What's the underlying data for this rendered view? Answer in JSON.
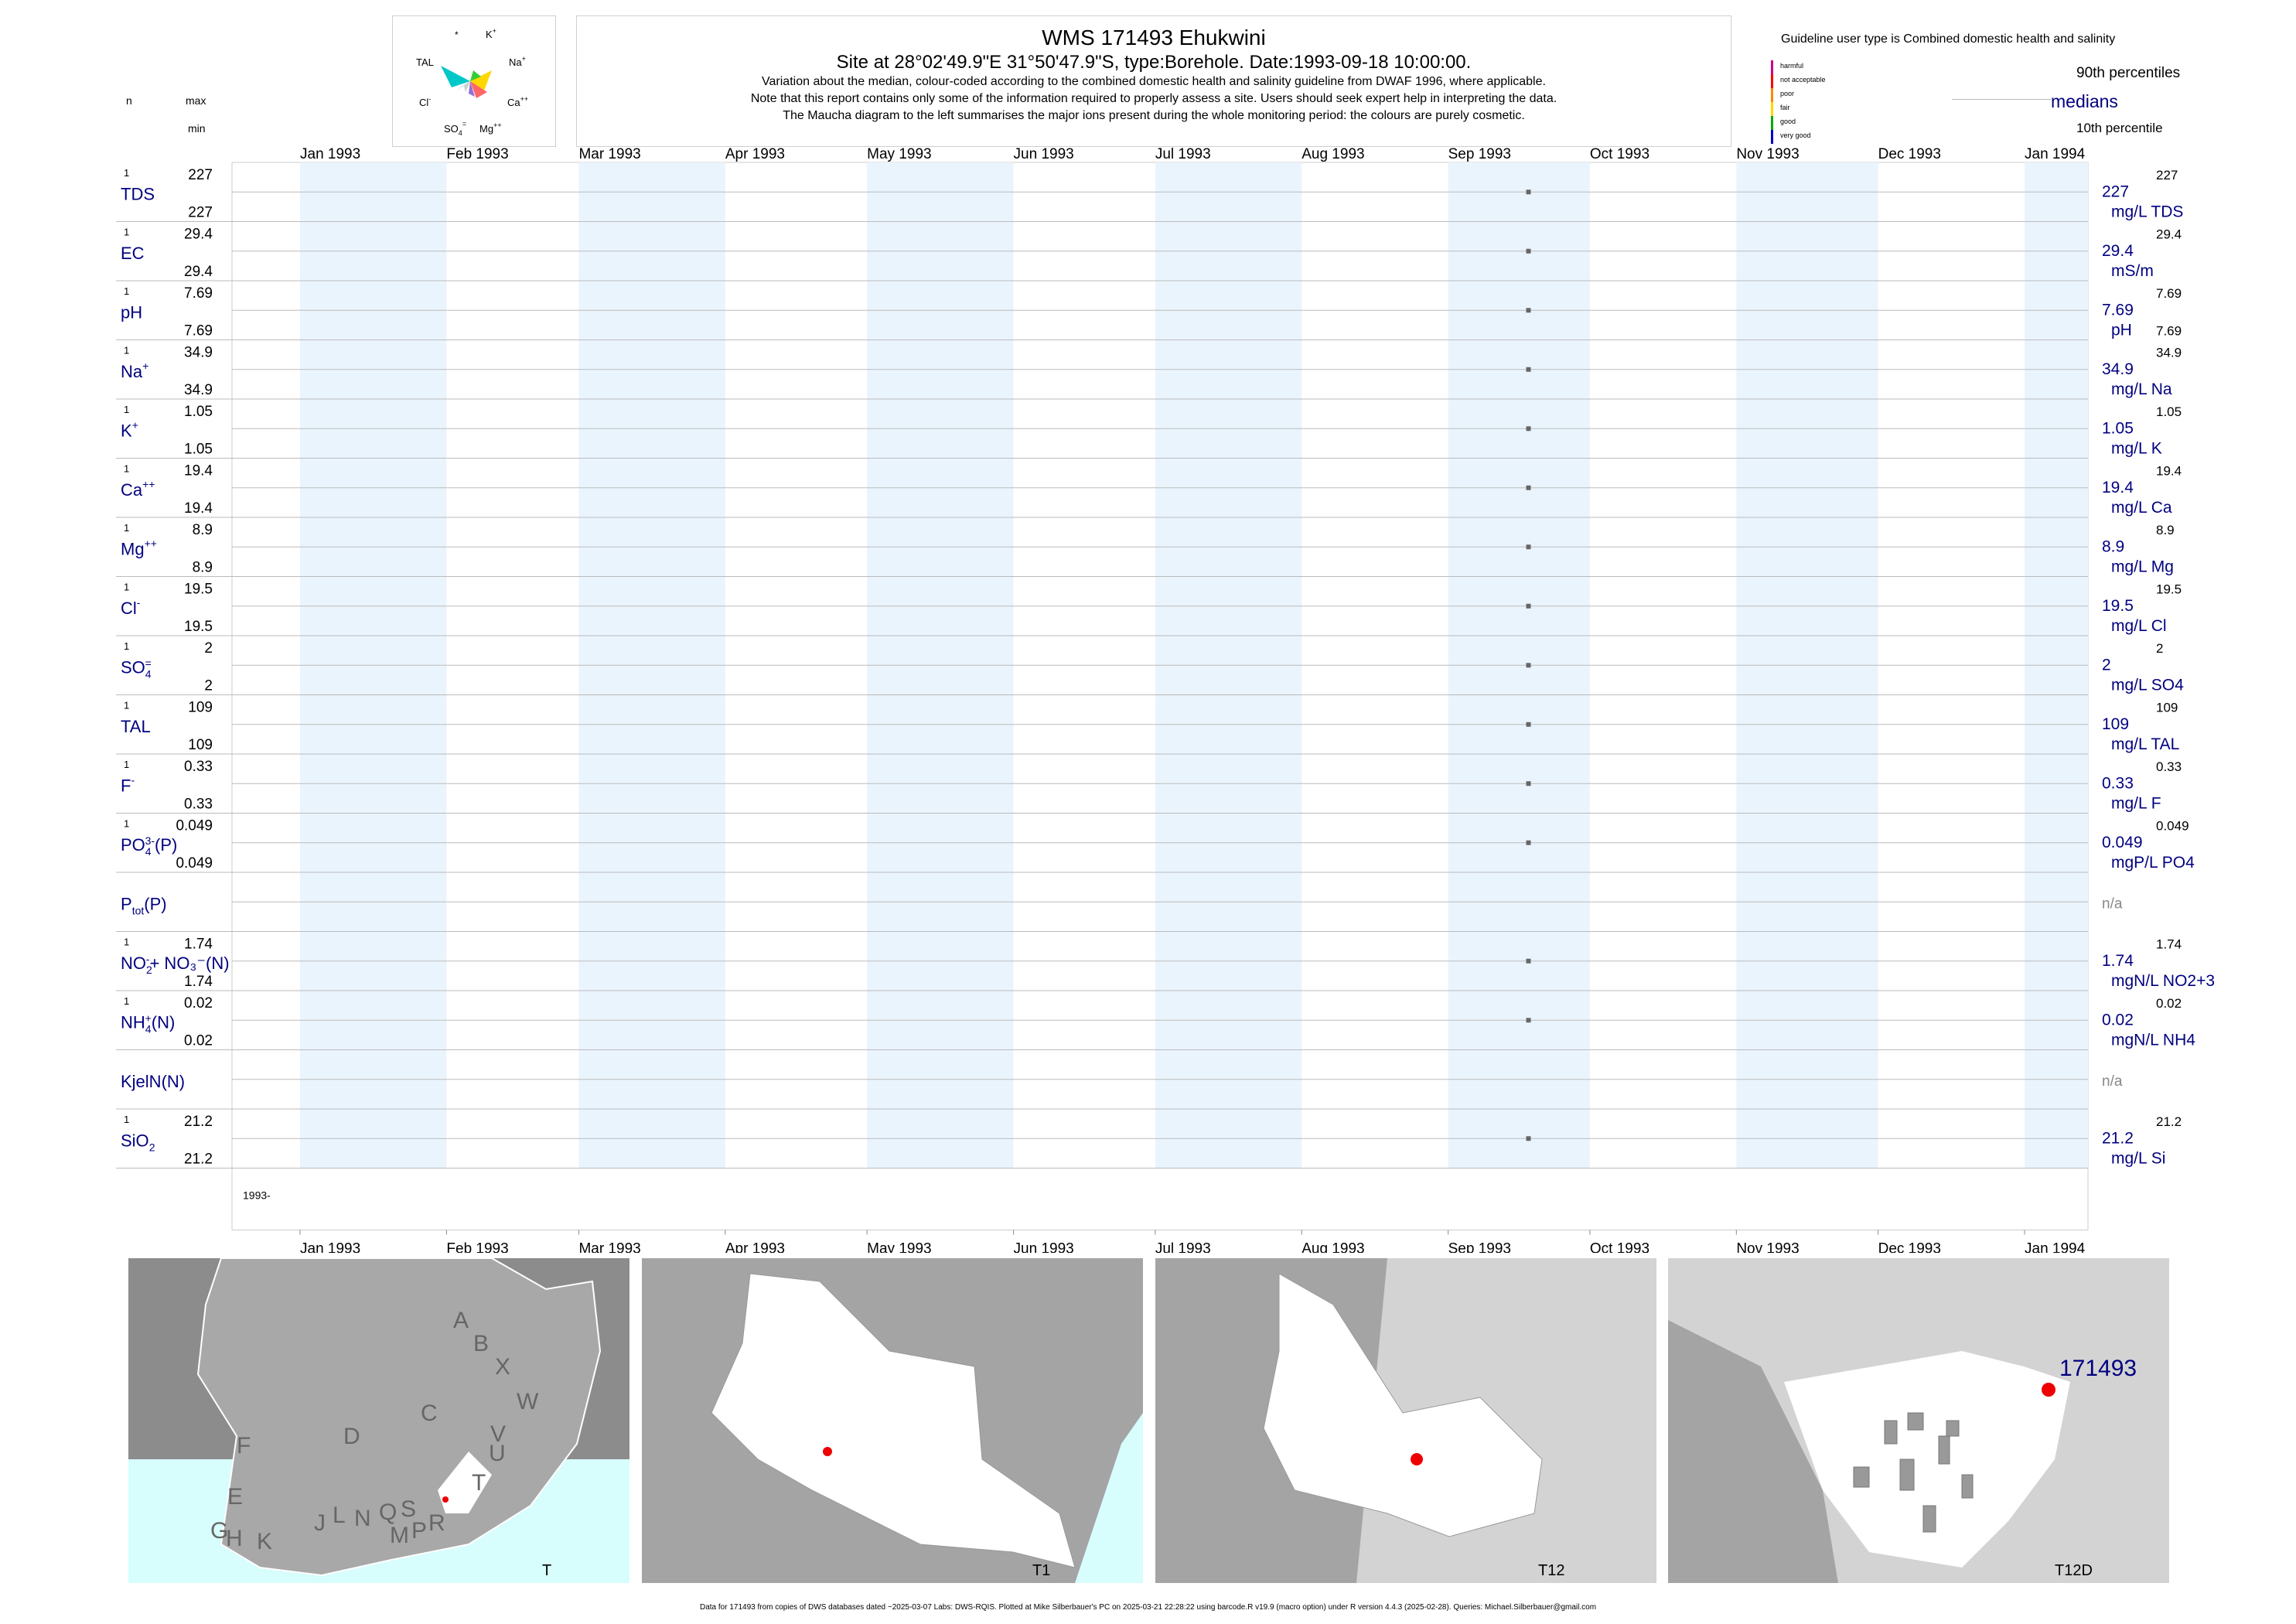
{
  "header": {
    "title": "WMS 171493  Ehukwini",
    "site_line": "Site at 28°02'49.9\"E 31°50'47.9\"S, type:Borehole. Date:1993-09-18 10:00:00.",
    "note1": "Variation about the median,  colour-coded according to the combined domestic health and salinity guideline from DWAF 1996, where applicable.",
    "note2": "Note that this report contains only some of the information required to properly assess a site. Users should seek expert help in interpreting the data.",
    "note3": "The Maucha diagram to the left summarises the major ions present during the whole monitoring period: the colours are purely cosmetic."
  },
  "left_header": {
    "n": "n",
    "max": "max",
    "min": "min"
  },
  "maucha": {
    "labels": {
      "star": "*",
      "k": "K",
      "na": "Na",
      "ca": "Ca",
      "mg": "Mg",
      "so4": "SO",
      "cl": "Cl",
      "tal": "TAL"
    },
    "colors": [
      "#00c8c8",
      "#ffd700",
      "#33cc33",
      "#ff6666",
      "#9370db",
      "#ffff66",
      "#66ccff",
      "#cccccc"
    ]
  },
  "guideline": {
    "title": "Guideline user type is Combined domestic health and salinity",
    "levels": [
      {
        "label": "harmful",
        "color": "#cc0088"
      },
      {
        "label": "not acceptable",
        "color": "#ff0000"
      },
      {
        "label": "poor",
        "color": "#ff8800"
      },
      {
        "label": "fair",
        "color": "#ffd700"
      },
      {
        "label": "good",
        "color": "#00aa00"
      },
      {
        "label": "very good",
        "color": "#0000cc"
      }
    ],
    "p90": "90th percentiles",
    "medians": "medians",
    "p10": "10th percentile"
  },
  "chart_data": {
    "type": "scatter",
    "x_ticks": [
      "Jan 1993",
      "Feb 1993",
      "Mar 1993",
      "Apr 1993",
      "May 1993",
      "Jun 1993",
      "Jul 1993",
      "Aug 1993",
      "Sep 1993",
      "Oct 1993",
      "Nov 1993",
      "Dec 1993",
      "Jan 1994"
    ],
    "xlim": [
      "1993-01-01",
      "1994-01-01"
    ],
    "year_label": "1993-",
    "sample_date": "1993-09-18",
    "rows": [
      {
        "base": "TDS",
        "sup": "",
        "sub": "",
        "tail": "",
        "n": "1",
        "max": "227",
        "min": "227",
        "median": "227",
        "p90": "227",
        "unit": "mg/L TDS",
        "value": 227
      },
      {
        "base": "EC",
        "sup": "",
        "sub": "",
        "tail": "",
        "n": "1",
        "max": "29.4",
        "min": "29.4",
        "median": "29.4",
        "p90": "29.4",
        "unit": "mS/m",
        "value": 29.4
      },
      {
        "base": "pH",
        "sup": "",
        "sub": "",
        "tail": "",
        "n": "1",
        "max": "7.69",
        "min": "7.69",
        "median": "7.69",
        "p90": "7.69",
        "p10": "7.69",
        "unit": "pH",
        "value": 7.69
      },
      {
        "base": "Na",
        "sup": "+",
        "sub": "",
        "tail": "",
        "n": "1",
        "max": "34.9",
        "min": "34.9",
        "median": "34.9",
        "p90": "34.9",
        "unit": "mg/L Na",
        "value": 34.9
      },
      {
        "base": "K",
        "sup": "+",
        "sub": "",
        "tail": "",
        "n": "1",
        "max": "1.05",
        "min": "1.05",
        "median": "1.05",
        "p90": "1.05",
        "unit": "mg/L K",
        "value": 1.05
      },
      {
        "base": "Ca",
        "sup": "++",
        "sub": "",
        "tail": "",
        "n": "1",
        "max": "19.4",
        "min": "19.4",
        "median": "19.4",
        "p90": "19.4",
        "unit": "mg/L Ca",
        "value": 19.4
      },
      {
        "base": "Mg",
        "sup": "++",
        "sub": "",
        "tail": "",
        "n": "1",
        "max": "8.9",
        "min": "8.9",
        "median": "8.9",
        "p90": "8.9",
        "unit": "mg/L Mg",
        "value": 8.9
      },
      {
        "base": "Cl",
        "sup": "-",
        "sub": "",
        "tail": "",
        "n": "1",
        "max": "19.5",
        "min": "19.5",
        "median": "19.5",
        "p90": "19.5",
        "unit": "mg/L Cl",
        "value": 19.5
      },
      {
        "base": "SO",
        "sup": "=",
        "sub": "4",
        "tail": "",
        "n": "1",
        "max": "2",
        "min": "2",
        "median": "2",
        "p90": "2",
        "unit": "mg/L SO4",
        "value": 2
      },
      {
        "base": "TAL",
        "sup": "",
        "sub": "",
        "tail": "",
        "n": "1",
        "max": "109",
        "min": "109",
        "median": "109",
        "p90": "109",
        "unit": "mg/L TAL",
        "value": 109
      },
      {
        "base": "F",
        "sup": "-",
        "sub": "",
        "tail": "",
        "n": "1",
        "max": "0.33",
        "min": "0.33",
        "median": "0.33",
        "p90": "0.33",
        "unit": "mg/L F",
        "value": 0.33
      },
      {
        "base": "PO",
        "sup": "3-",
        "sub": "4",
        "tail": "(P)",
        "n": "1",
        "max": "0.049",
        "min": "0.049",
        "median": "0.049",
        "p90": "0.049",
        "unit": "mgP/L PO4",
        "value": 0.049
      },
      {
        "base": "P",
        "sup": "",
        "sub": "tot",
        "tail": "(P)",
        "n": "",
        "max": "",
        "min": "",
        "median": "n/a",
        "p90": "",
        "unit": "",
        "value": null
      },
      {
        "base": "NO",
        "sup": "-",
        "sub": "2",
        "tail": "+ NO₃⁻(N)",
        "n": "1",
        "max": "1.74",
        "min": "1.74",
        "median": "1.74",
        "p90": "1.74",
        "unit": "mgN/L NO2+3",
        "value": 1.74
      },
      {
        "base": "NH",
        "sup": "+",
        "sub": "4",
        "tail": "(N)",
        "n": "1",
        "max": "0.02",
        "min": "0.02",
        "median": "0.02",
        "p90": "0.02",
        "unit": "mgN/L NH4",
        "value": 0.02
      },
      {
        "base": "KjelN(N)",
        "sup": "",
        "sub": "",
        "tail": "",
        "n": "",
        "max": "",
        "min": "",
        "median": "n/a",
        "p90": "",
        "unit": "",
        "value": null
      },
      {
        "base": "SiO",
        "sup": "",
        "sub": "2",
        "tail": "",
        "n": "1",
        "max": "21.2",
        "min": "21.2",
        "median": "21.2",
        "p90": "21.2",
        "unit": "mg/L Si",
        "value": 21.2
      }
    ]
  },
  "maps": [
    {
      "label": "T",
      "letters": [
        "A",
        "B",
        "X",
        "W",
        "C",
        "V",
        "D",
        "U",
        "T",
        "F",
        "E",
        "J",
        "L",
        "N",
        "Q",
        "S",
        "G",
        "H",
        "K",
        "M",
        "P",
        "R"
      ]
    },
    {
      "label": "T1"
    },
    {
      "label": "T12"
    },
    {
      "label": "T12D",
      "site": "171493"
    }
  ],
  "footer": "Data for 171493 from copies of DWS databases dated ~2025-03-07 Labs: DWS-RQIS. Plotted at Mike Silberbauer's PC on 2025-03-21 22:28:22 using barcode.R v19.9 (macro option) under R version 4.4.3 (2025-02-28). Queries: Michael.Silberbauer@gmail.com"
}
